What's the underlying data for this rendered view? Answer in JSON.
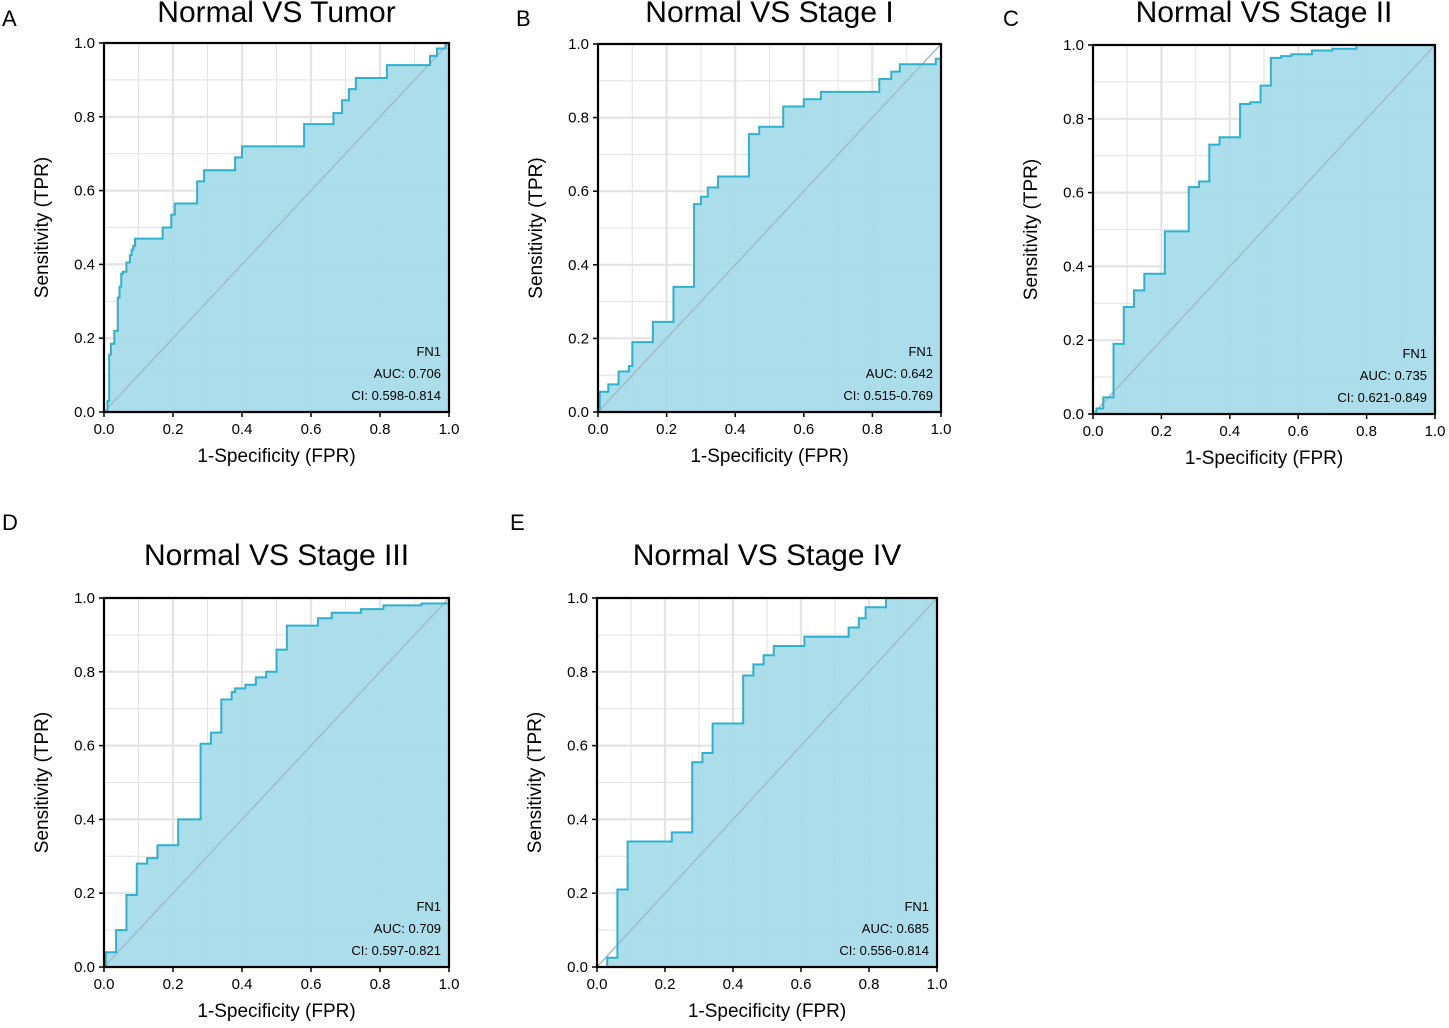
{
  "figure": {
    "colors": {
      "fill": "#a6dbe9",
      "curve": "#2cb2cc",
      "grid": "#e4e4e4",
      "diagonal": "#9fbfc9",
      "frame": "#000000"
    }
  },
  "chart_data": [
    {
      "type": "line",
      "panel_label": "A",
      "title": "Normal VS Tumor",
      "xlabel": "1-Specificity (FPR)",
      "ylabel": "Sensitivity (TPR)",
      "xlim": [
        0,
        1
      ],
      "ylim": [
        0,
        1
      ],
      "xticks": [
        "0.0",
        "0.2",
        "0.4",
        "0.6",
        "0.8",
        "1.0"
      ],
      "yticks": [
        "0.0",
        "0.2",
        "0.4",
        "0.6",
        "0.8",
        "1.0"
      ],
      "legend": {
        "marker": "FN1",
        "auc": "AUC: 0.706",
        "ci": "CI: 0.598-0.814"
      },
      "series": [
        {
          "name": "FN1",
          "x": [
            0,
            0.01,
            0.01,
            0.015,
            0.015,
            0.02,
            0.02,
            0.03,
            0.03,
            0.04,
            0.04,
            0.045,
            0.045,
            0.05,
            0.05,
            0.055,
            0.055,
            0.065,
            0.065,
            0.075,
            0.075,
            0.08,
            0.08,
            0.085,
            0.085,
            0.09,
            0.09,
            0.17,
            0.17,
            0.195,
            0.195,
            0.205,
            0.205,
            0.27,
            0.27,
            0.29,
            0.29,
            0.38,
            0.38,
            0.4,
            0.4,
            0.58,
            0.58,
            0.665,
            0.665,
            0.69,
            0.69,
            0.71,
            0.71,
            0.73,
            0.73,
            0.82,
            0.82,
            0.945,
            0.945,
            0.965,
            0.965,
            0.99,
            0.99,
            1.0
          ],
          "y": [
            0,
            0,
            0.03,
            0.03,
            0.155,
            0.155,
            0.185,
            0.185,
            0.22,
            0.22,
            0.31,
            0.31,
            0.34,
            0.34,
            0.375,
            0.375,
            0.38,
            0.38,
            0.405,
            0.405,
            0.425,
            0.425,
            0.44,
            0.44,
            0.45,
            0.45,
            0.47,
            0.47,
            0.5,
            0.5,
            0.535,
            0.535,
            0.565,
            0.565,
            0.625,
            0.625,
            0.655,
            0.655,
            0.69,
            0.69,
            0.72,
            0.72,
            0.78,
            0.78,
            0.81,
            0.81,
            0.845,
            0.845,
            0.875,
            0.875,
            0.905,
            0.905,
            0.94,
            0.94,
            0.965,
            0.965,
            0.985,
            0.985,
            1.0,
            1.0
          ]
        }
      ]
    },
    {
      "type": "line",
      "panel_label": "B",
      "title": "Normal VS Stage I",
      "xlabel": "1-Specificity (FPR)",
      "ylabel": "Sensitivity (TPR)",
      "xlim": [
        0,
        1
      ],
      "ylim": [
        0,
        1
      ],
      "xticks": [
        "0.0",
        "0.2",
        "0.4",
        "0.6",
        "0.8",
        "1.0"
      ],
      "yticks": [
        "0.0",
        "0.2",
        "0.4",
        "0.6",
        "0.8",
        "1.0"
      ],
      "legend": {
        "marker": "FN1",
        "auc": "AUC: 0.642",
        "ci": "CI: 0.515-0.769"
      },
      "series": [
        {
          "name": "FN1",
          "x": [
            0,
            0.005,
            0.005,
            0.03,
            0.03,
            0.06,
            0.06,
            0.09,
            0.09,
            0.1,
            0.1,
            0.16,
            0.16,
            0.22,
            0.22,
            0.28,
            0.28,
            0.3,
            0.3,
            0.32,
            0.32,
            0.35,
            0.35,
            0.44,
            0.44,
            0.47,
            0.47,
            0.54,
            0.54,
            0.6,
            0.6,
            0.64,
            0.64,
            0.65,
            0.65,
            0.82,
            0.82,
            0.855,
            0.855,
            0.88,
            0.88,
            0.985,
            0.985,
            1.0
          ],
          "y": [
            0,
            0,
            0.055,
            0.055,
            0.075,
            0.075,
            0.11,
            0.11,
            0.125,
            0.125,
            0.19,
            0.19,
            0.245,
            0.245,
            0.34,
            0.34,
            0.565,
            0.565,
            0.585,
            0.585,
            0.61,
            0.61,
            0.64,
            0.64,
            0.755,
            0.755,
            0.775,
            0.775,
            0.83,
            0.83,
            0.85,
            0.85,
            0.85,
            0.85,
            0.87,
            0.87,
            0.905,
            0.905,
            0.925,
            0.925,
            0.945,
            0.945,
            0.96,
            0.96
          ]
        }
      ]
    },
    {
      "type": "line",
      "panel_label": "C",
      "title": "Normal VS Stage II",
      "xlabel": "1-Specificity (FPR)",
      "ylabel": "Sensitivity (TPR)",
      "xlim": [
        0,
        1
      ],
      "ylim": [
        0,
        1
      ],
      "xticks": [
        "0.0",
        "0.2",
        "0.4",
        "0.6",
        "0.8",
        "1.0"
      ],
      "yticks": [
        "0.0",
        "0.2",
        "0.4",
        "0.6",
        "0.8",
        "1.0"
      ],
      "legend": {
        "marker": "FN1",
        "auc": "AUC: 0.735",
        "ci": "CI: 0.621-0.849"
      },
      "series": [
        {
          "name": "FN1",
          "x": [
            0,
            0.01,
            0.01,
            0.03,
            0.03,
            0.06,
            0.06,
            0.09,
            0.09,
            0.12,
            0.12,
            0.15,
            0.15,
            0.21,
            0.21,
            0.28,
            0.28,
            0.31,
            0.31,
            0.34,
            0.34,
            0.37,
            0.37,
            0.43,
            0.43,
            0.46,
            0.46,
            0.49,
            0.49,
            0.52,
            0.52,
            0.55,
            0.55,
            0.58,
            0.58,
            0.64,
            0.64,
            0.7,
            0.7,
            0.77,
            0.77,
            1.0
          ],
          "y": [
            0,
            0,
            0.015,
            0.015,
            0.045,
            0.045,
            0.19,
            0.19,
            0.29,
            0.29,
            0.335,
            0.335,
            0.38,
            0.38,
            0.495,
            0.495,
            0.615,
            0.615,
            0.63,
            0.63,
            0.73,
            0.73,
            0.75,
            0.75,
            0.84,
            0.84,
            0.845,
            0.845,
            0.89,
            0.89,
            0.965,
            0.965,
            0.97,
            0.97,
            0.975,
            0.975,
            0.985,
            0.985,
            0.99,
            0.99,
            1.0,
            1.0
          ]
        }
      ]
    },
    {
      "type": "line",
      "panel_label": "D",
      "title": "Normal VS Stage III",
      "xlabel": "1-Specificity (FPR)",
      "ylabel": "Sensitivity (TPR)",
      "xlim": [
        0,
        1
      ],
      "ylim": [
        0,
        1
      ],
      "xticks": [
        "0.0",
        "0.2",
        "0.4",
        "0.6",
        "0.8",
        "1.0"
      ],
      "yticks": [
        "0.0",
        "0.2",
        "0.4",
        "0.6",
        "0.8",
        "1.0"
      ],
      "legend": {
        "marker": "FN1",
        "auc": "AUC: 0.709",
        "ci": "CI: 0.597-0.821"
      },
      "series": [
        {
          "name": "FN1",
          "x": [
            0,
            0.005,
            0.005,
            0.035,
            0.035,
            0.065,
            0.065,
            0.095,
            0.095,
            0.125,
            0.125,
            0.155,
            0.155,
            0.215,
            0.215,
            0.28,
            0.28,
            0.31,
            0.31,
            0.34,
            0.34,
            0.37,
            0.37,
            0.38,
            0.38,
            0.41,
            0.41,
            0.44,
            0.44,
            0.47,
            0.47,
            0.5,
            0.5,
            0.53,
            0.53,
            0.62,
            0.62,
            0.66,
            0.66,
            0.745,
            0.745,
            0.81,
            0.81,
            0.92,
            0.92,
            1.0
          ],
          "y": [
            0,
            0,
            0.04,
            0.04,
            0.1,
            0.1,
            0.195,
            0.195,
            0.28,
            0.28,
            0.295,
            0.295,
            0.33,
            0.33,
            0.4,
            0.4,
            0.605,
            0.605,
            0.635,
            0.635,
            0.725,
            0.725,
            0.745,
            0.745,
            0.755,
            0.755,
            0.765,
            0.765,
            0.785,
            0.785,
            0.8,
            0.8,
            0.86,
            0.86,
            0.925,
            0.925,
            0.945,
            0.945,
            0.96,
            0.96,
            0.97,
            0.97,
            0.98,
            0.98,
            0.985,
            0.985
          ]
        }
      ]
    },
    {
      "type": "line",
      "panel_label": "E",
      "title": "Normal VS Stage IV",
      "xlabel": "1-Specificity (FPR)",
      "ylabel": "Sensitivity (TPR)",
      "xlim": [
        0,
        1
      ],
      "ylim": [
        0,
        1
      ],
      "xticks": [
        "0.0",
        "0.2",
        "0.4",
        "0.6",
        "0.8",
        "1.0"
      ],
      "yticks": [
        "0.0",
        "0.2",
        "0.4",
        "0.6",
        "0.8",
        "1.0"
      ],
      "legend": {
        "marker": "FN1",
        "auc": "AUC: 0.685",
        "ci": "CI: 0.556-0.814"
      },
      "series": [
        {
          "name": "FN1",
          "x": [
            0,
            0.03,
            0.03,
            0.06,
            0.06,
            0.09,
            0.09,
            0.22,
            0.22,
            0.28,
            0.28,
            0.31,
            0.31,
            0.34,
            0.34,
            0.43,
            0.43,
            0.46,
            0.46,
            0.49,
            0.49,
            0.52,
            0.52,
            0.61,
            0.61,
            0.74,
            0.74,
            0.77,
            0.77,
            0.79,
            0.79,
            0.82,
            0.82,
            0.85,
            0.85,
            1.0
          ],
          "y": [
            0,
            0,
            0.025,
            0.025,
            0.21,
            0.21,
            0.34,
            0.34,
            0.365,
            0.365,
            0.555,
            0.555,
            0.58,
            0.58,
            0.66,
            0.66,
            0.79,
            0.79,
            0.82,
            0.82,
            0.845,
            0.845,
            0.87,
            0.87,
            0.895,
            0.895,
            0.92,
            0.92,
            0.945,
            0.945,
            0.975,
            0.975,
            0.975,
            0.975,
            1.0,
            1.0
          ]
        }
      ]
    }
  ]
}
